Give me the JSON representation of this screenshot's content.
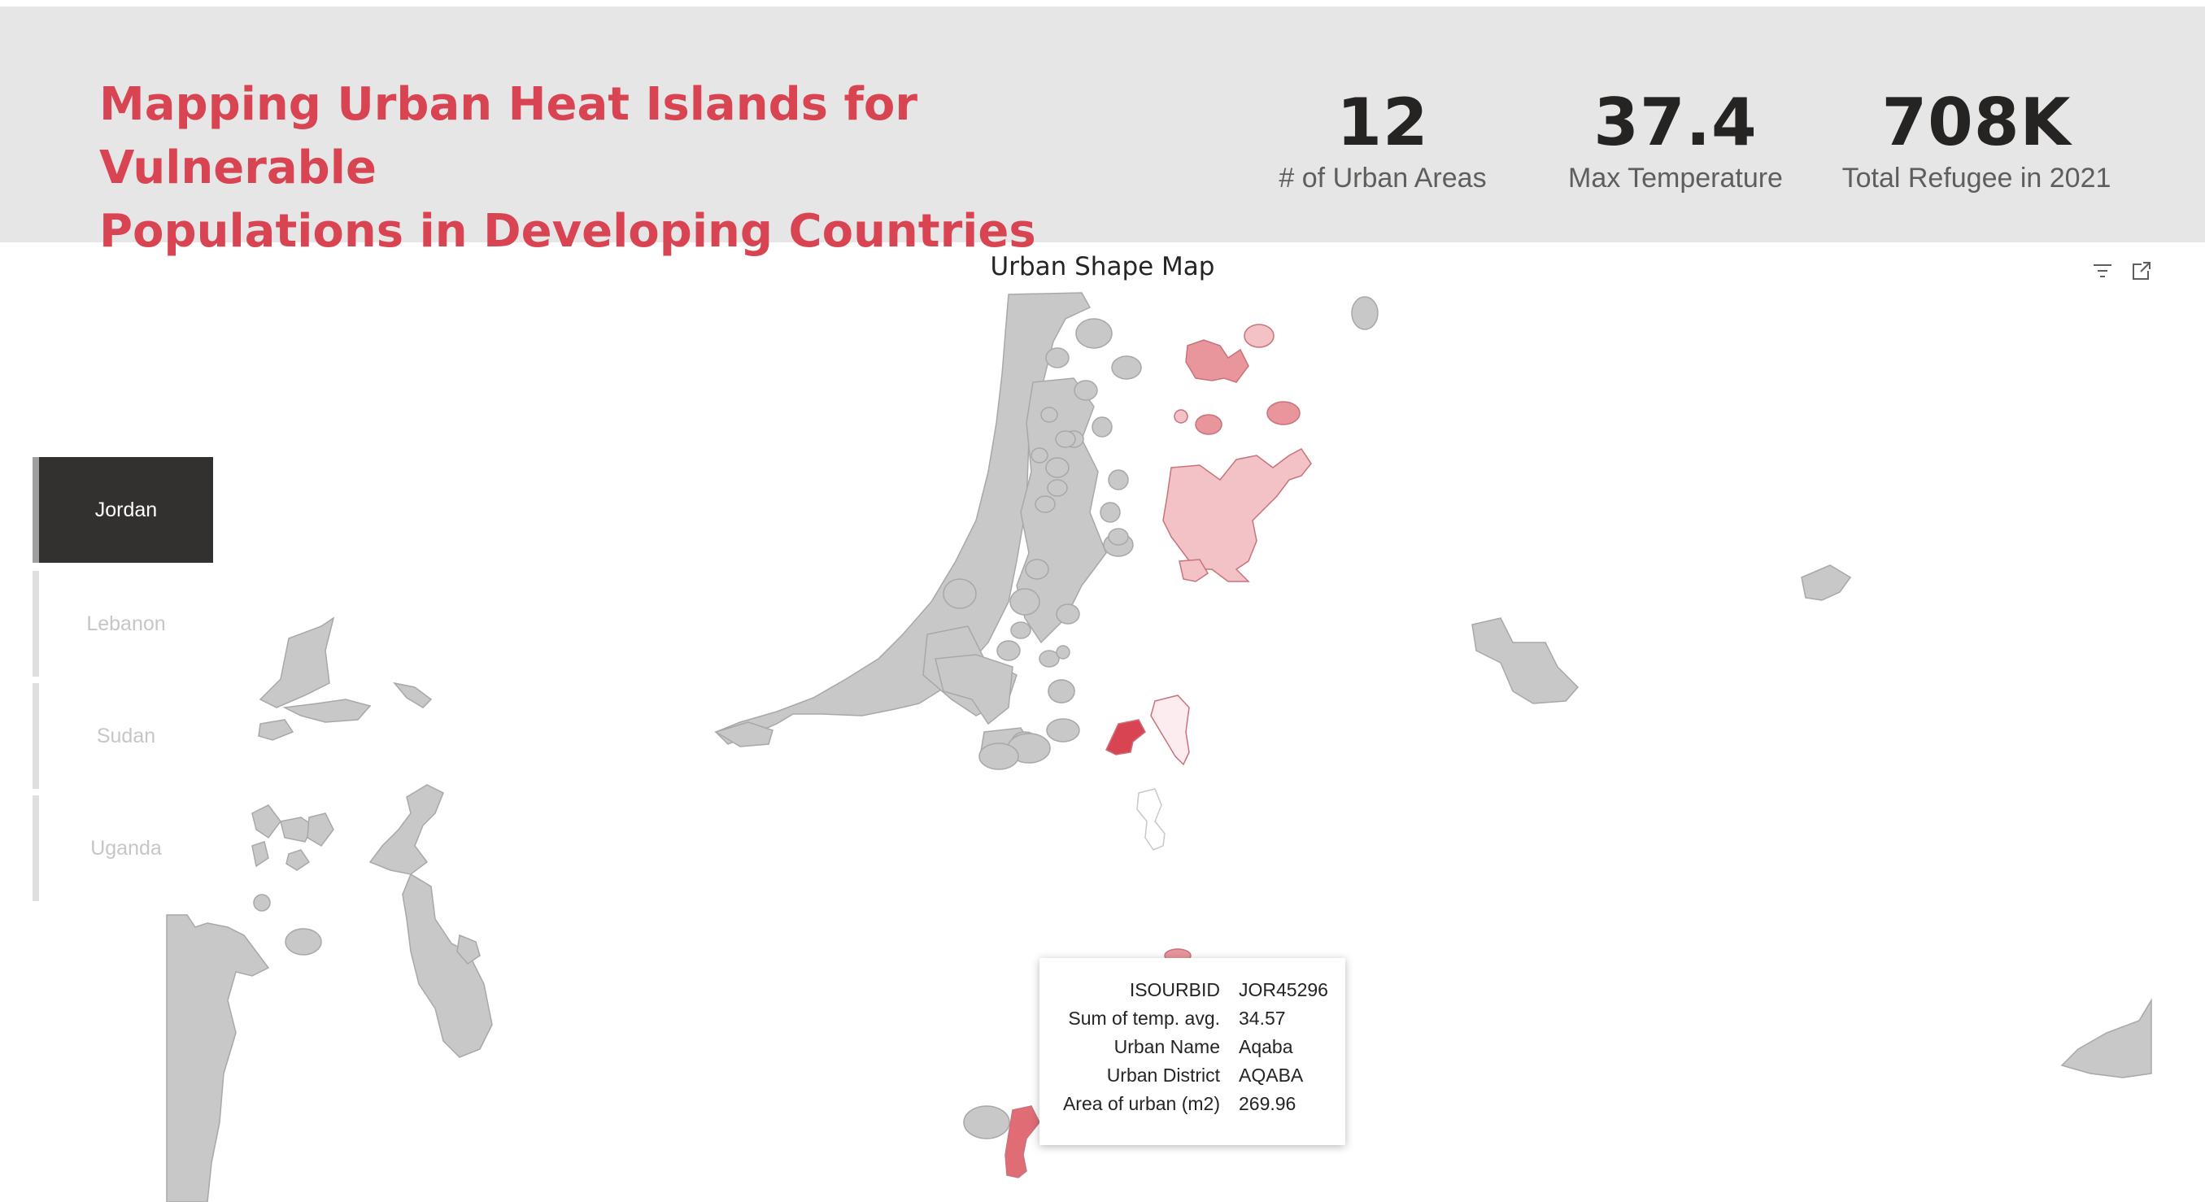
{
  "header": {
    "title_line1": "Mapping Urban Heat Islands for Vulnerable",
    "title_line2": "Populations in Developing Countries",
    "title_color": "#d94452"
  },
  "kpis": [
    {
      "value": "12",
      "label": "# of Urban Areas"
    },
    {
      "value": "37.4",
      "label": "Max Temperature"
    },
    {
      "value": "708K",
      "label": "Total Refugee in 2021"
    }
  ],
  "map": {
    "title": "Urban Shape Map",
    "icons": [
      "filter-icon",
      "focus-mode-icon"
    ],
    "colors": {
      "base": "#c8c8c8",
      "light": "#f2c2c6",
      "medium": "#e8959c",
      "strong": "#d94452"
    }
  },
  "slicer": {
    "options": [
      "Jordan",
      "Lebanon",
      "Sudan",
      "Uganda"
    ],
    "selected": "Jordan"
  },
  "tooltip": {
    "rows": [
      {
        "key": "ISOURBID",
        "value": "JOR45296"
      },
      {
        "key": "Sum of temp. avg.",
        "value": "34.57"
      },
      {
        "key": "Urban Name",
        "value": "Aqaba"
      },
      {
        "key": "Urban District",
        "value": "AQABA"
      },
      {
        "key": "Area of urban (m2)",
        "value": "269.96"
      }
    ]
  }
}
